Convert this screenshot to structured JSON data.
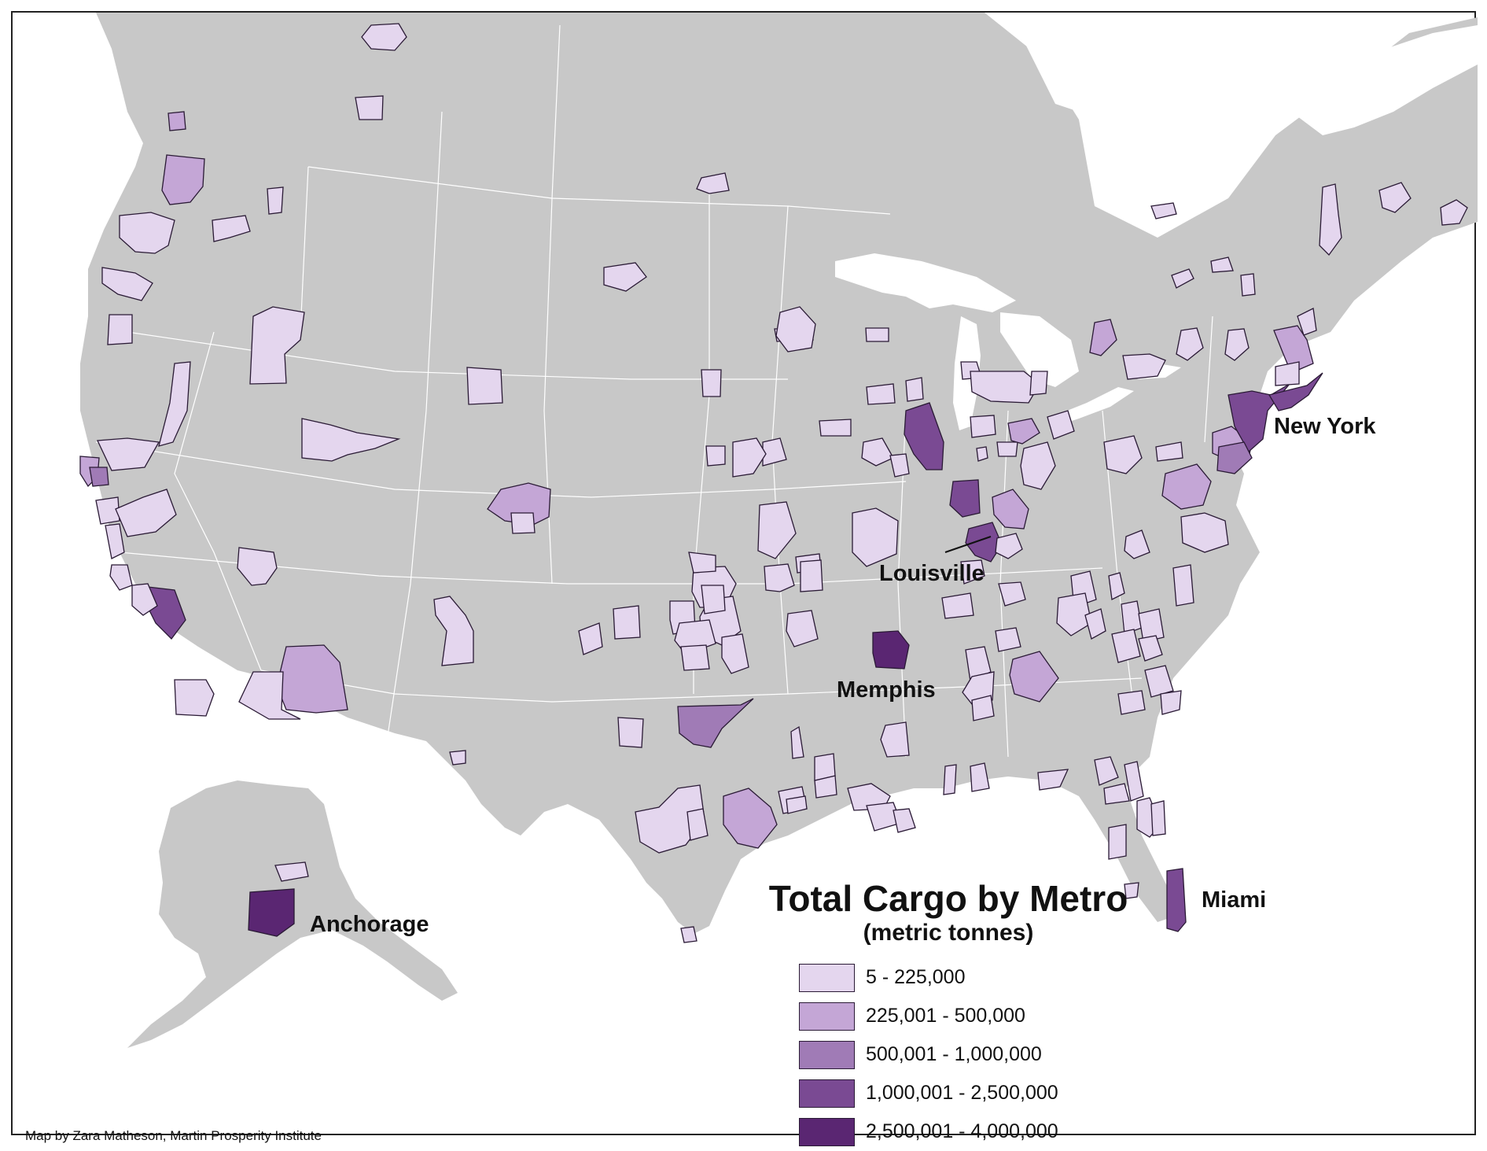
{
  "map": {
    "title": "Total Cargo by Metro",
    "subtitle": "(metric tonnes)",
    "credit": "Map by Zara Matheson, Martin Prosperity Institute"
  },
  "legend": [
    {
      "label": "5 - 225,000",
      "color": "#e4d6ee"
    },
    {
      "label": "225,001 - 500,000",
      "color": "#c4a6d6"
    },
    {
      "label": "500,001 - 1,000,000",
      "color": "#a07bb6"
    },
    {
      "label": "1,000,001 - 2,500,000",
      "color": "#7a4a93"
    },
    {
      "label": "2,500,001 - 4,000,000",
      "color": "#5a2672"
    }
  ],
  "labels": {
    "new_york": "New York",
    "louisville": "Louisville",
    "memphis": "Memphis",
    "miami": "Miami",
    "anchorage": "Anchorage"
  },
  "colors": {
    "land": "#c8c8c8",
    "water": "#ffffff",
    "borders": "#ffffff"
  }
}
